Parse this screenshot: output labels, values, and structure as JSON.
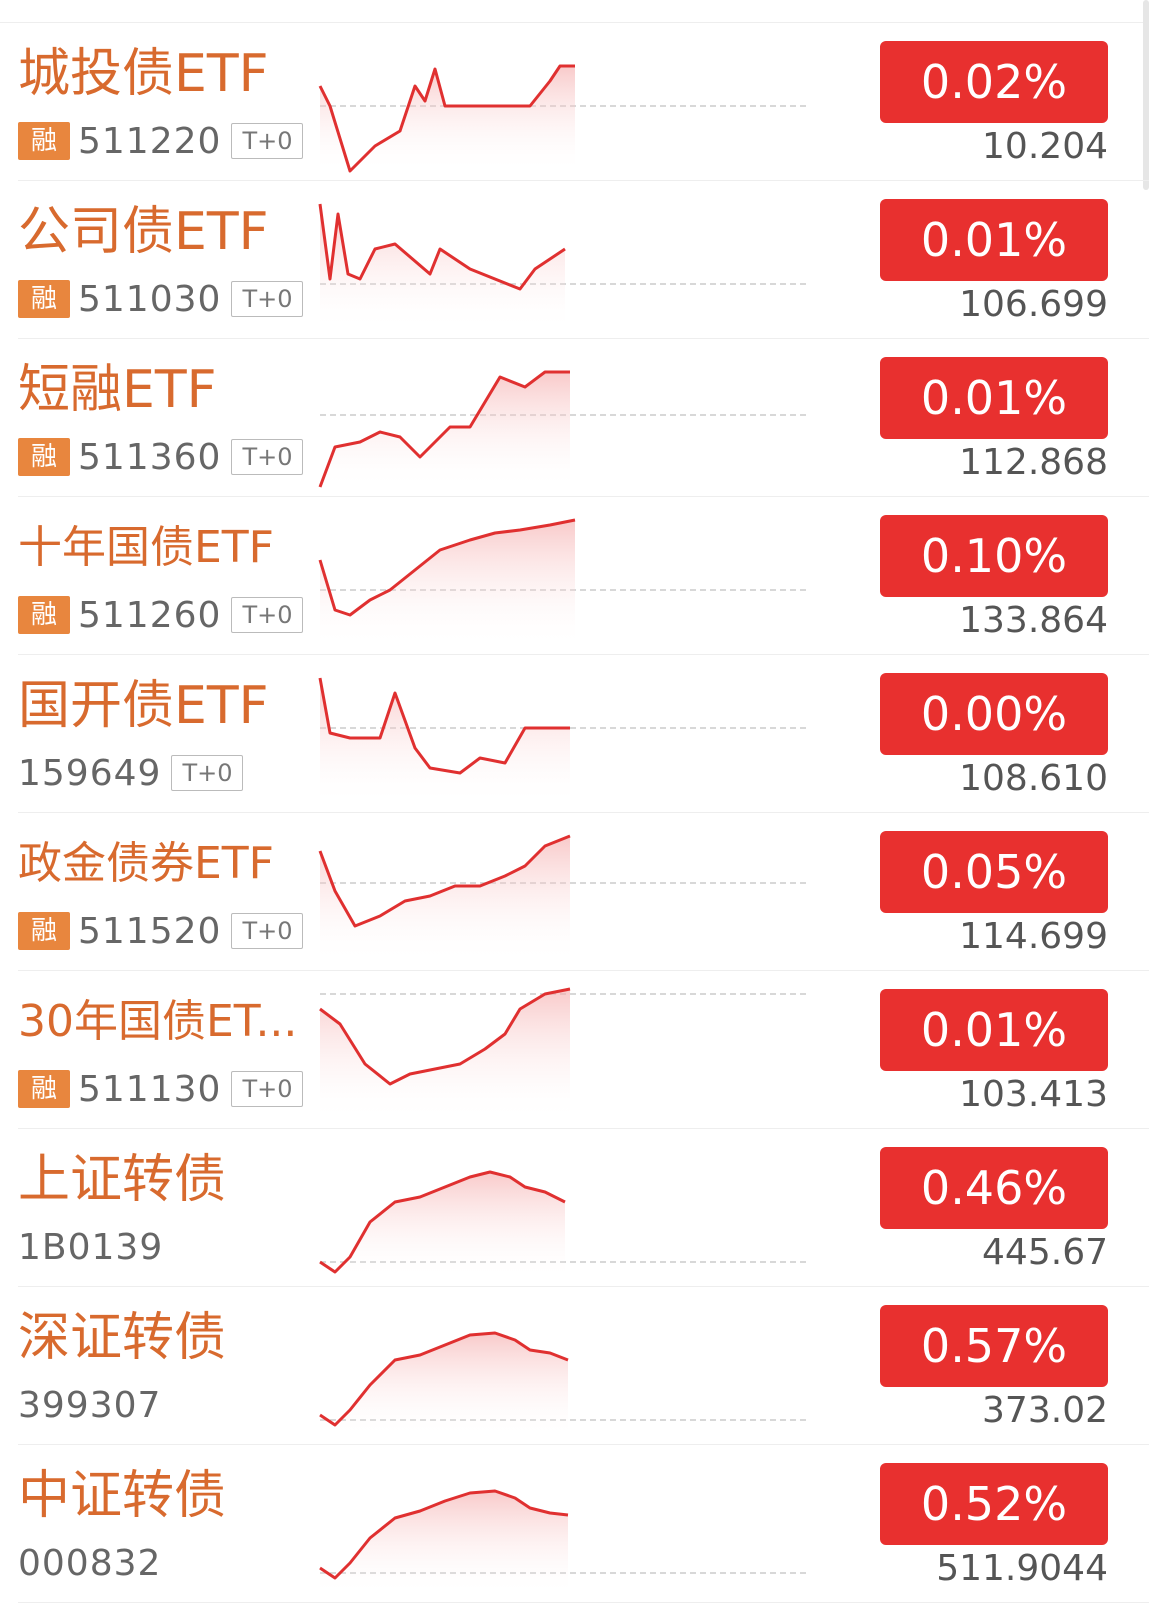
{
  "colors": {
    "name": "#d86a2e",
    "badge": "#e8302f",
    "rong_tag": "#e8863e",
    "line": "#e03030"
  },
  "items": [
    {
      "name": "城投债ETF",
      "rong": "融",
      "code": "511220",
      "tag": "T+0",
      "change": "0.02%",
      "price": "10.204"
    },
    {
      "name": "公司债ETF",
      "rong": "融",
      "code": "511030",
      "tag": "T+0",
      "change": "0.01%",
      "price": "106.699"
    },
    {
      "name": "短融ETF",
      "rong": "融",
      "code": "511360",
      "tag": "T+0",
      "change": "0.01%",
      "price": "112.868"
    },
    {
      "name": "十年国债ETF",
      "rong": "融",
      "code": "511260",
      "tag": "T+0",
      "change": "0.10%",
      "price": "133.864"
    },
    {
      "name": "国开债ETF",
      "rong": "",
      "code": "159649",
      "tag": "T+0",
      "change": "0.00%",
      "price": "108.610"
    },
    {
      "name": "政金债券ETF",
      "rong": "融",
      "code": "511520",
      "tag": "T+0",
      "change": "0.05%",
      "price": "114.699"
    },
    {
      "name": "30年国债ET...",
      "rong": "融",
      "code": "511130",
      "tag": "T+0",
      "change": "0.01%",
      "price": "103.413"
    },
    {
      "name": "上证转债",
      "rong": "",
      "code": "1B0139",
      "tag": "",
      "change": "0.46%",
      "price": "445.67"
    },
    {
      "name": "深证转债",
      "rong": "",
      "code": "399307",
      "tag": "",
      "change": "0.57%",
      "price": "373.02"
    },
    {
      "name": "中证转债",
      "rong": "",
      "code": "000832",
      "tag": "",
      "change": "0.52%",
      "price": "511.9044"
    }
  ]
}
